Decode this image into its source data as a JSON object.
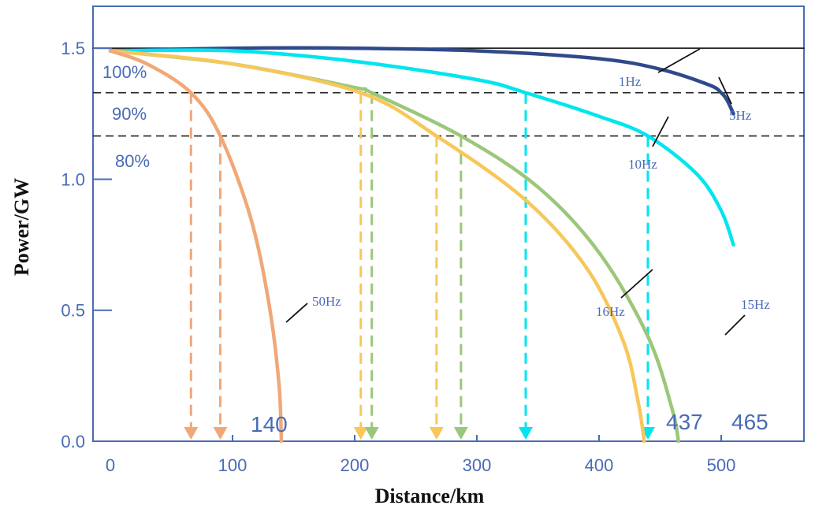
{
  "chart_data": {
    "type": "line",
    "xlabel": "Distance/km",
    "ylabel": "Power/GW",
    "xlim": [
      0,
      510
    ],
    "ylim": [
      0,
      1.66
    ],
    "x_ticks": [
      "0",
      "100",
      "200",
      "300",
      "400",
      "500"
    ],
    "x_tick_values": [
      0,
      100,
      200,
      300,
      400,
      500
    ],
    "y_ticks": [
      "0.0",
      "0.5",
      "1.0",
      "1.5"
    ],
    "y_tick_values": [
      0,
      0.5,
      1.0,
      1.5
    ],
    "reference_lines": [
      {
        "label": "100%",
        "y": 1.5,
        "style": "solid"
      },
      {
        "label": "90%",
        "y": 1.33,
        "style": "dashed"
      },
      {
        "label": "80%",
        "y": 1.165,
        "style": "dashed"
      }
    ],
    "series": [
      {
        "name": "1Hz",
        "color": "#222222",
        "x": [
          0,
          510
        ],
        "y": [
          1.5,
          1.5
        ]
      },
      {
        "name": "5Hz",
        "color": "#2f4a8a",
        "x": [
          0,
          100,
          200,
          300,
          400,
          450,
          490,
          500,
          505,
          510
        ],
        "y": [
          1.49,
          1.5,
          1.5,
          1.49,
          1.46,
          1.42,
          1.36,
          1.33,
          1.3,
          1.25
        ]
      },
      {
        "name": "10Hz",
        "color": "#00e5ee",
        "x": [
          0,
          100,
          200,
          300,
          340,
          400,
          440,
          480,
          500,
          510
        ],
        "y": [
          1.49,
          1.49,
          1.45,
          1.38,
          1.33,
          1.24,
          1.165,
          1.02,
          0.88,
          0.75
        ]
      },
      {
        "name": "15Hz",
        "color": "#9bc77a",
        "x": [
          0,
          100,
          200,
          214,
          287,
          350,
          400,
          440,
          460,
          465
        ],
        "y": [
          1.49,
          1.44,
          1.35,
          1.33,
          1.165,
          0.97,
          0.72,
          0.4,
          0.12,
          0.0
        ]
      },
      {
        "name": "16Hz",
        "color": "#f7c75a",
        "x": [
          0,
          100,
          205,
          267,
          340,
          390,
          420,
          432,
          437
        ],
        "y": [
          1.49,
          1.44,
          1.33,
          1.165,
          0.92,
          0.66,
          0.38,
          0.15,
          0.0
        ]
      },
      {
        "name": "50Hz",
        "color": "#f0a878",
        "x": [
          0,
          30,
          66,
          90,
          115,
          130,
          138,
          140
        ],
        "y": [
          1.49,
          1.44,
          1.33,
          1.165,
          0.85,
          0.52,
          0.22,
          0.0
        ]
      }
    ],
    "drop_arrows": [
      {
        "x": 66,
        "color": "#f0a878"
      },
      {
        "x": 90,
        "color": "#f0a878"
      },
      {
        "x": 205,
        "color": "#f7c75a"
      },
      {
        "x": 214,
        "color": "#9bc77a"
      },
      {
        "x": 267,
        "color": "#f7c75a"
      },
      {
        "x": 287,
        "color": "#9bc77a"
      },
      {
        "x": 340,
        "color": "#00e5ee"
      },
      {
        "x": 440,
        "color": "#00e5ee"
      }
    ],
    "end_labels": [
      "140",
      "437",
      "465"
    ],
    "grid": false
  }
}
